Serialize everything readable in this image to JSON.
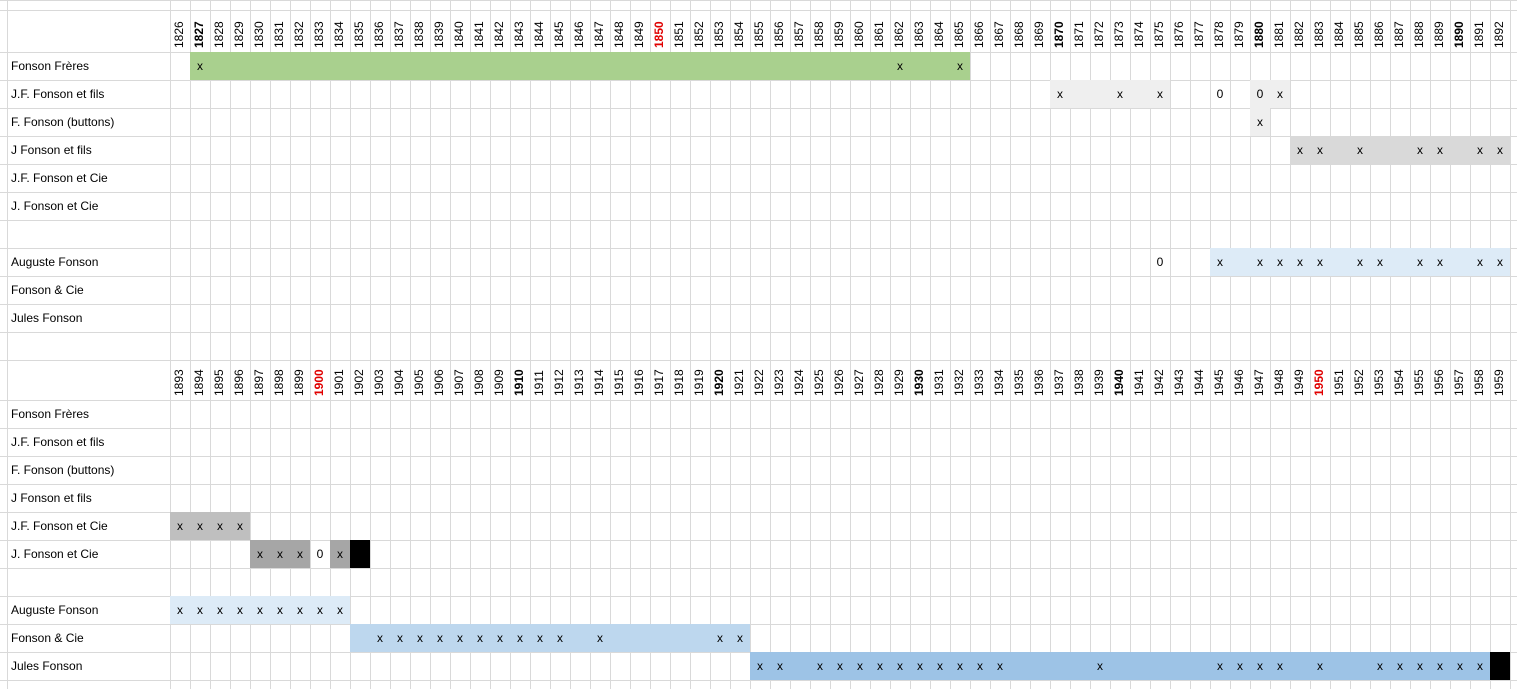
{
  "sheet": {
    "blocks": [
      {
        "years": [
          1826,
          1827,
          1828,
          1829,
          1830,
          1831,
          1832,
          1833,
          1834,
          1835,
          1836,
          1837,
          1838,
          1839,
          1840,
          1841,
          1842,
          1843,
          1844,
          1845,
          1846,
          1847,
          1848,
          1849,
          1850,
          1851,
          1852,
          1853,
          1854,
          1855,
          1856,
          1857,
          1858,
          1859,
          1860,
          1861,
          1862,
          1863,
          1864,
          1865,
          1866,
          1867,
          1868,
          1869,
          1870,
          1871,
          1872,
          1873,
          1874,
          1875,
          1876,
          1877,
          1878,
          1879,
          1880,
          1881,
          1882,
          1883,
          1884,
          1885,
          1886,
          1887,
          1888,
          1889,
          1890,
          1891,
          1892
        ],
        "bold_years": [
          1,
          44,
          54,
          64
        ],
        "red_years": [
          24
        ],
        "rows": [
          {
            "label": "Fonson Frères",
            "fills": [
              {
                "from": 1,
                "to": 39,
                "color": "#a9d08e"
              }
            ],
            "marks": [
              {
                "col": 1,
                "text": "x"
              },
              {
                "col": 36,
                "text": "x"
              },
              {
                "col": 39,
                "text": "x"
              }
            ]
          },
          {
            "label": "J.F. Fonson et fils",
            "fills": [
              {
                "from": 44,
                "to": 49,
                "color": "#efefef"
              },
              {
                "from": 54,
                "to": 55,
                "color": "#efefef"
              }
            ],
            "marks": [
              {
                "col": 44,
                "text": "x"
              },
              {
                "col": 47,
                "text": "x"
              },
              {
                "col": 49,
                "text": "x"
              },
              {
                "col": 52,
                "text": "0"
              },
              {
                "col": 54,
                "text": "0"
              },
              {
                "col": 55,
                "text": "x"
              }
            ]
          },
          {
            "label": "F. Fonson (buttons)",
            "fills": [
              {
                "from": 54,
                "to": 54,
                "color": "#efefef"
              }
            ],
            "marks": [
              {
                "col": 54,
                "text": "x"
              }
            ]
          },
          {
            "label": "J Fonson et fils",
            "fills": [
              {
                "from": 56,
                "to": 66,
                "color": "#d9d9d9"
              }
            ],
            "marks": [
              {
                "col": 56,
                "text": "x"
              },
              {
                "col": 57,
                "text": "x"
              },
              {
                "col": 59,
                "text": "x"
              },
              {
                "col": 62,
                "text": "x"
              },
              {
                "col": 63,
                "text": "x"
              },
              {
                "col": 65,
                "text": "x"
              },
              {
                "col": 66,
                "text": "x"
              }
            ]
          },
          {
            "label": "J.F. Fonson et Cie",
            "fills": [],
            "marks": []
          },
          {
            "label": "J. Fonson et Cie",
            "fills": [],
            "marks": []
          },
          {
            "label": "Auguste Fonson",
            "fills": [
              {
                "from": 52,
                "to": 66,
                "color": "#ddebf7"
              }
            ],
            "marks": [
              {
                "col": 49,
                "text": "0"
              },
              {
                "col": 52,
                "text": "x"
              },
              {
                "col": 54,
                "text": "x"
              },
              {
                "col": 55,
                "text": "x"
              },
              {
                "col": 56,
                "text": "x"
              },
              {
                "col": 57,
                "text": "x"
              },
              {
                "col": 59,
                "text": "x"
              },
              {
                "col": 60,
                "text": "x"
              },
              {
                "col": 62,
                "text": "x"
              },
              {
                "col": 63,
                "text": "x"
              },
              {
                "col": 65,
                "text": "x"
              },
              {
                "col": 66,
                "text": "x"
              }
            ]
          },
          {
            "label": "Fonson & Cie",
            "fills": [],
            "marks": []
          },
          {
            "label": "Jules Fonson",
            "fills": [],
            "marks": []
          }
        ]
      },
      {
        "years": [
          1893,
          1894,
          1895,
          1896,
          1897,
          1898,
          1899,
          1900,
          1901,
          1902,
          1903,
          1904,
          1905,
          1906,
          1907,
          1908,
          1909,
          1910,
          1911,
          1912,
          1913,
          1914,
          1915,
          1916,
          1917,
          1918,
          1919,
          1920,
          1921,
          1922,
          1923,
          1924,
          1925,
          1926,
          1927,
          1928,
          1929,
          1930,
          1931,
          1932,
          1933,
          1934,
          1935,
          1936,
          1937,
          1938,
          1939,
          1940,
          1941,
          1942,
          1943,
          1944,
          1945,
          1946,
          1947,
          1948,
          1949,
          1950,
          1951,
          1952,
          1953,
          1954,
          1955,
          1956,
          1957,
          1958,
          1959
        ],
        "bold_years": [
          17,
          27,
          37,
          47
        ],
        "red_years": [
          7,
          57
        ],
        "rows": [
          {
            "label": "Fonson Frères",
            "fills": [],
            "marks": []
          },
          {
            "label": "J.F. Fonson et fils",
            "fills": [],
            "marks": []
          },
          {
            "label": "F. Fonson (buttons)",
            "fills": [],
            "marks": []
          },
          {
            "label": "J Fonson et fils",
            "fills": [],
            "marks": []
          },
          {
            "label": "J.F. Fonson et Cie",
            "fills": [
              {
                "from": 0,
                "to": 3,
                "color": "#bfbfbf"
              }
            ],
            "marks": [
              {
                "col": 0,
                "text": "x"
              },
              {
                "col": 1,
                "text": "x"
              },
              {
                "col": 2,
                "text": "x"
              },
              {
                "col": 3,
                "text": "x"
              }
            ]
          },
          {
            "label": "J. Fonson et Cie",
            "fills": [
              {
                "from": 4,
                "to": 6,
                "color": "#a6a6a6"
              },
              {
                "from": 8,
                "to": 8,
                "color": "#a6a6a6"
              },
              {
                "from": 9,
                "to": 9,
                "color": "#000000"
              }
            ],
            "marks": [
              {
                "col": 4,
                "text": "x"
              },
              {
                "col": 5,
                "text": "x"
              },
              {
                "col": 6,
                "text": "x"
              },
              {
                "col": 7,
                "text": "0"
              },
              {
                "col": 8,
                "text": "x"
              }
            ]
          },
          {
            "label": "Auguste Fonson",
            "fills": [
              {
                "from": 0,
                "to": 8,
                "color": "#ddebf7"
              }
            ],
            "marks": [
              {
                "col": 0,
                "text": "x"
              },
              {
                "col": 1,
                "text": "x"
              },
              {
                "col": 2,
                "text": "x"
              },
              {
                "col": 3,
                "text": "x"
              },
              {
                "col": 4,
                "text": "x"
              },
              {
                "col": 5,
                "text": "x"
              },
              {
                "col": 6,
                "text": "x"
              },
              {
                "col": 7,
                "text": "x"
              },
              {
                "col": 8,
                "text": "x"
              }
            ]
          },
          {
            "label": "Fonson & Cie",
            "fills": [
              {
                "from": 9,
                "to": 28,
                "color": "#bdd7ee"
              }
            ],
            "marks": [
              {
                "col": 10,
                "text": "x"
              },
              {
                "col": 11,
                "text": "x"
              },
              {
                "col": 12,
                "text": "x"
              },
              {
                "col": 13,
                "text": "x"
              },
              {
                "col": 14,
                "text": "x"
              },
              {
                "col": 15,
                "text": "x"
              },
              {
                "col": 16,
                "text": "x"
              },
              {
                "col": 17,
                "text": "x"
              },
              {
                "col": 18,
                "text": "x"
              },
              {
                "col": 19,
                "text": "x"
              },
              {
                "col": 21,
                "text": "x"
              },
              {
                "col": 27,
                "text": "x"
              },
              {
                "col": 28,
                "text": "x"
              }
            ]
          },
          {
            "label": "Jules Fonson",
            "fills": [
              {
                "from": 29,
                "to": 65,
                "color": "#9dc3e6"
              },
              {
                "from": 66,
                "to": 66,
                "color": "#000000"
              }
            ],
            "marks": [
              {
                "col": 29,
                "text": "x"
              },
              {
                "col": 30,
                "text": "x"
              },
              {
                "col": 32,
                "text": "x"
              },
              {
                "col": 33,
                "text": "x"
              },
              {
                "col": 34,
                "text": "x"
              },
              {
                "col": 35,
                "text": "x"
              },
              {
                "col": 36,
                "text": "x"
              },
              {
                "col": 37,
                "text": "x"
              },
              {
                "col": 38,
                "text": "x"
              },
              {
                "col": 39,
                "text": "x"
              },
              {
                "col": 40,
                "text": "x"
              },
              {
                "col": 41,
                "text": "x"
              },
              {
                "col": 46,
                "text": "x"
              },
              {
                "col": 52,
                "text": "x"
              },
              {
                "col": 53,
                "text": "x"
              },
              {
                "col": 54,
                "text": "x"
              },
              {
                "col": 55,
                "text": "x"
              },
              {
                "col": 57,
                "text": "x"
              },
              {
                "col": 60,
                "text": "x"
              },
              {
                "col": 61,
                "text": "x"
              },
              {
                "col": 62,
                "text": "x"
              },
              {
                "col": 63,
                "text": "x"
              },
              {
                "col": 64,
                "text": "x"
              },
              {
                "col": 65,
                "text": "x"
              }
            ]
          }
        ]
      }
    ]
  }
}
